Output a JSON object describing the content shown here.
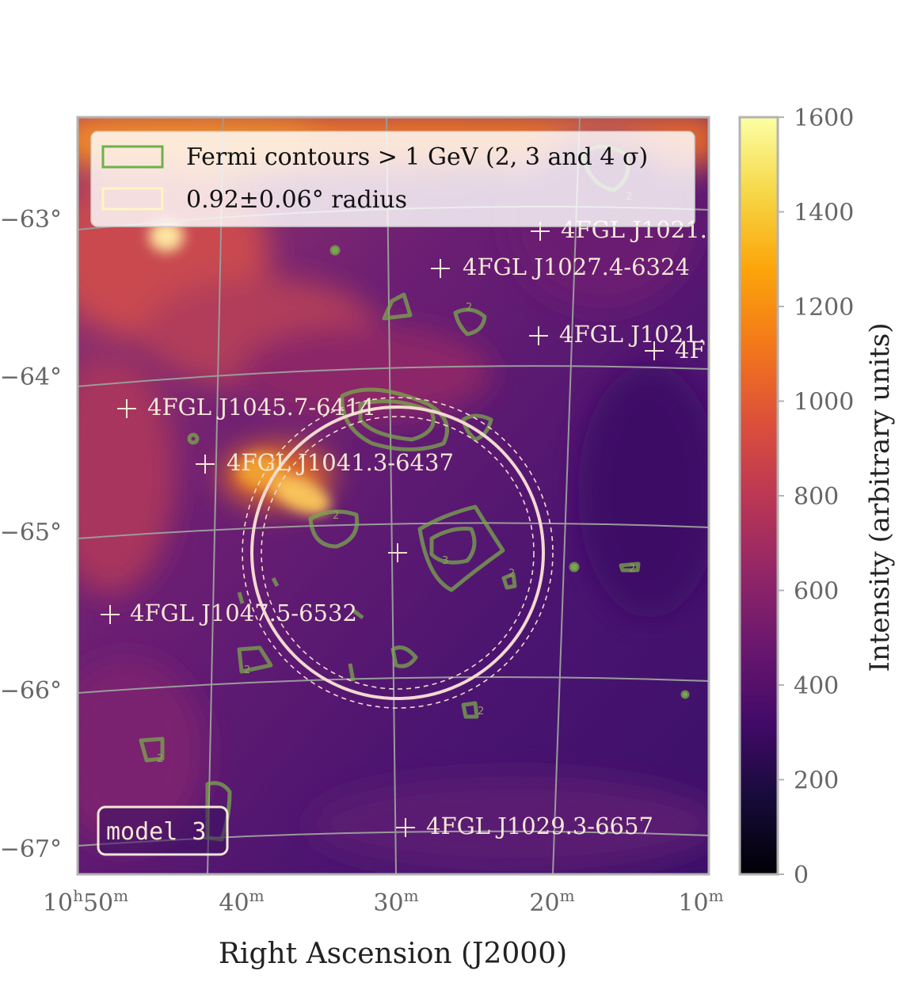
{
  "chart_data": {
    "type": "heatmap",
    "xlabel": "Right Ascension (J2000)",
    "x_ticks": [
      {
        "label": "10h50m",
        "major": "10",
        "sup": "h",
        "mid": "50",
        "sup2": "m"
      },
      {
        "label": "40m",
        "mid": "40",
        "sup2": "m"
      },
      {
        "label": "30m",
        "mid": "30",
        "sup2": "m"
      },
      {
        "label": "20m",
        "mid": "20",
        "sup2": "m"
      },
      {
        "label": "10m",
        "mid": "10",
        "sup2": "m"
      }
    ],
    "y_ticks": [
      "−63°",
      "−64°",
      "−65°",
      "−66°",
      "−67°"
    ],
    "colorbar": {
      "label": "Intensity (arbitrary units)",
      "range": [
        0,
        1600
      ],
      "ticks": [
        "0",
        "200",
        "400",
        "600",
        "800",
        "1000",
        "1200",
        "1400",
        "1600"
      ],
      "colormap": "inferno"
    },
    "legend": {
      "placement": "top-left",
      "entries": [
        {
          "label": "Fermi contours > 1 GeV (2, 3 and 4 σ)",
          "color": "#6fb04a"
        },
        {
          "label": "0.92±0.06° radius",
          "color": "#fff6c2"
        }
      ]
    },
    "sources": [
      "4FGL J1021.",
      "4FGL J1027.4-6324",
      "4FGL J1021.",
      "4F",
      "4FGL J1045.7-6414",
      "4FGL J1041.3-6437",
      "4FGL J1047.5-6532",
      "4FGL J1029.3-6657"
    ],
    "contour_levels": [
      "2",
      "3",
      "4"
    ],
    "circle": {
      "radius_deg": 0.92,
      "uncertainty_deg": 0.06
    },
    "model_label": "model 3"
  },
  "colors": {
    "contour": "#7aa84c",
    "contour_bright": "#6fb04a",
    "circle": "#f3d9cf",
    "grid": "#9a9a9a",
    "frame": "#b3b3b3"
  }
}
